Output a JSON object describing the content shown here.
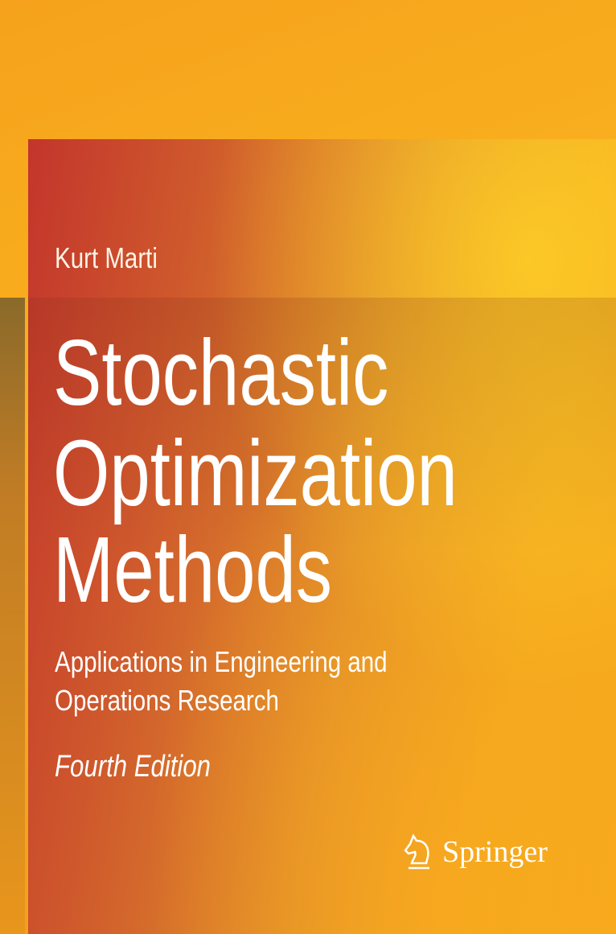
{
  "cover": {
    "author": "Kurt Marti",
    "title_lines": [
      "Stochastic",
      "Optimization",
      "Methods"
    ],
    "subtitle_lines": [
      "Applications in Engineering and",
      "Operations Research"
    ],
    "edition": "Fourth Edition",
    "publisher": "Springer",
    "colors": {
      "background": "#f6a21c",
      "panel_left": "#c3352c",
      "text": "#ffffff"
    }
  }
}
